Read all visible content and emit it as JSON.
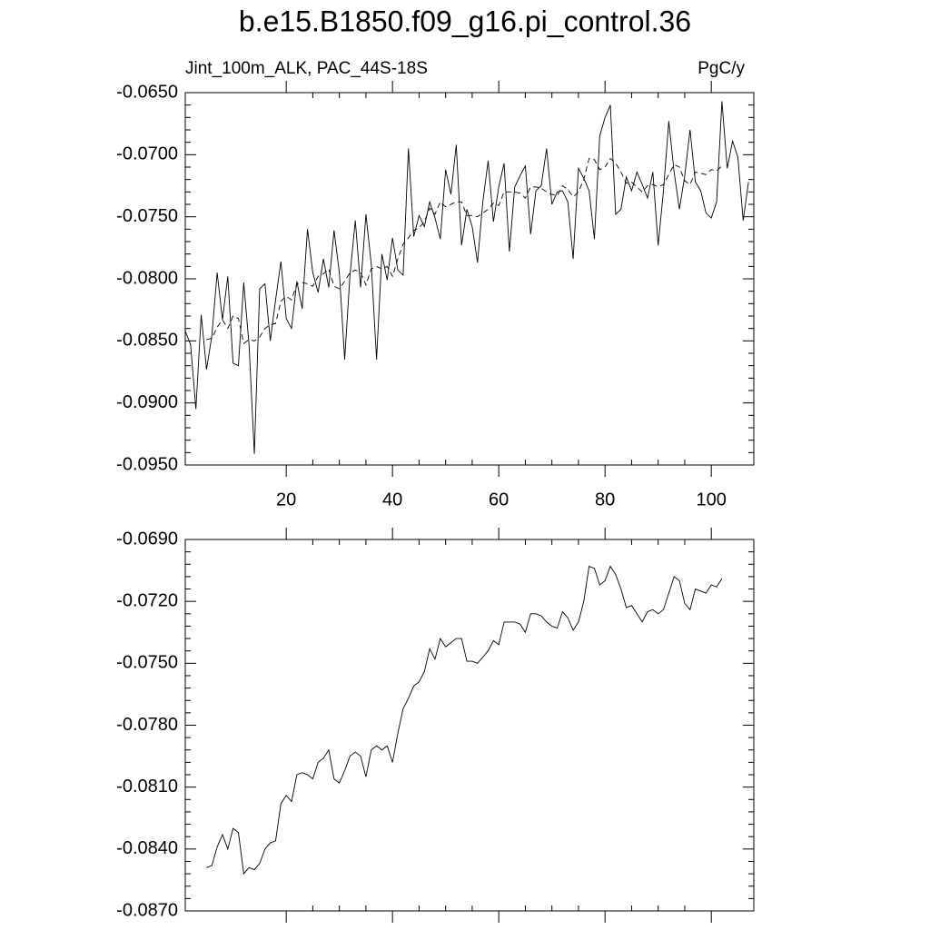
{
  "chart_data": [
    {
      "type": "line",
      "title": "b.e15.B1850.f09_g16.pi_control.36",
      "left_string": "Jint_100m_ALK, PAC_44S-18S",
      "right_string": "PgC/y",
      "x": [
        1,
        2,
        3,
        4,
        5,
        6,
        7,
        8,
        9,
        10,
        11,
        12,
        13,
        14,
        15,
        16,
        17,
        18,
        19,
        20,
        21,
        22,
        23,
        24,
        25,
        26,
        27,
        28,
        29,
        30,
        31,
        32,
        33,
        34,
        35,
        36,
        37,
        38,
        39,
        40,
        41,
        42,
        43,
        44,
        45,
        46,
        47,
        48,
        49,
        50,
        51,
        52,
        53,
        54,
        55,
        56,
        57,
        58,
        59,
        60,
        61,
        62,
        63,
        64,
        65,
        66,
        67,
        68,
        69,
        70,
        71,
        72,
        73,
        74,
        75,
        76,
        77,
        78,
        79,
        80,
        81,
        82,
        83,
        84,
        85,
        86,
        87,
        88,
        89,
        90,
        91,
        92,
        93,
        94,
        95,
        96,
        97,
        98,
        99,
        100,
        101,
        102,
        103,
        104,
        105,
        106,
        107
      ],
      "series": [
        {
          "color": "#000000",
          "dash": false,
          "values": [
            -0.0842,
            -0.0853,
            -0.0905,
            -0.0829,
            -0.0873,
            -0.0846,
            -0.0795,
            -0.0833,
            -0.0798,
            -0.0868,
            -0.087,
            -0.0803,
            -0.0853,
            -0.0941,
            -0.0808,
            -0.0804,
            -0.085,
            -0.0817,
            -0.0786,
            -0.0832,
            -0.084,
            -0.0802,
            -0.0824,
            -0.076,
            -0.0795,
            -0.0811,
            -0.0784,
            -0.0807,
            -0.0761,
            -0.0795,
            -0.0865,
            -0.0797,
            -0.0753,
            -0.0807,
            -0.0748,
            -0.0788,
            -0.0865,
            -0.078,
            -0.0801,
            -0.0767,
            -0.0793,
            -0.0797,
            -0.0695,
            -0.0766,
            -0.0749,
            -0.0758,
            -0.0738,
            -0.0751,
            -0.0768,
            -0.0712,
            -0.0732,
            -0.0692,
            -0.0773,
            -0.0744,
            -0.0758,
            -0.0787,
            -0.0738,
            -0.0705,
            -0.0754,
            -0.0726,
            -0.0707,
            -0.0778,
            -0.0726,
            -0.0717,
            -0.0709,
            -0.0764,
            -0.0729,
            -0.0725,
            -0.0695,
            -0.074,
            -0.073,
            -0.0729,
            -0.0738,
            -0.0784,
            -0.0711,
            -0.0719,
            -0.0729,
            -0.0768,
            -0.0685,
            -0.067,
            -0.066,
            -0.0748,
            -0.0744,
            -0.0718,
            -0.0729,
            -0.0714,
            -0.0724,
            -0.0735,
            -0.0714,
            -0.0773,
            -0.0729,
            -0.0673,
            -0.0714,
            -0.0744,
            -0.0717,
            -0.068,
            -0.0722,
            -0.0729,
            -0.0747,
            -0.0751,
            -0.0738,
            -0.0657,
            -0.0711,
            -0.0689,
            -0.0702,
            -0.0753,
            -0.0722
          ]
        },
        {
          "color": "#000000",
          "dash": true,
          "values": [
            null,
            null,
            null,
            null,
            -0.0849,
            -0.0848,
            -0.0839,
            -0.0833,
            -0.084,
            -0.083,
            -0.0832,
            -0.0852,
            -0.0849,
            -0.085,
            -0.0847,
            -0.084,
            -0.0837,
            -0.0836,
            -0.0818,
            -0.0814,
            -0.0817,
            -0.0804,
            -0.0803,
            -0.0804,
            -0.0806,
            -0.0798,
            -0.0796,
            -0.0792,
            -0.0806,
            -0.0808,
            -0.0802,
            -0.0795,
            -0.0793,
            -0.0795,
            -0.0805,
            -0.0792,
            -0.079,
            -0.0792,
            -0.079,
            -0.0798,
            -0.0784,
            -0.0772,
            -0.0767,
            -0.0761,
            -0.0759,
            -0.0754,
            -0.0743,
            -0.0748,
            -0.0738,
            -0.0742,
            -0.074,
            -0.0738,
            -0.0738,
            -0.0749,
            -0.0749,
            -0.075,
            -0.0747,
            -0.0744,
            -0.0739,
            -0.0741,
            -0.073,
            -0.073,
            -0.073,
            -0.0731,
            -0.0735,
            -0.0726,
            -0.0726,
            -0.0727,
            -0.073,
            -0.0732,
            -0.0733,
            -0.0725,
            -0.0728,
            -0.0734,
            -0.073,
            -0.072,
            -0.0703,
            -0.0704,
            -0.0712,
            -0.071,
            -0.0703,
            -0.0707,
            -0.0714,
            -0.0723,
            -0.0722,
            -0.0726,
            -0.073,
            -0.0725,
            -0.0724,
            -0.0726,
            -0.0724,
            -0.0716,
            -0.0708,
            -0.071,
            -0.0721,
            -0.0724,
            -0.0714,
            -0.0715,
            -0.0716,
            -0.0712,
            -0.0713,
            -0.0709,
            null,
            null,
            null,
            null,
            null
          ]
        }
      ],
      "xlim": [
        1,
        108
      ],
      "xticks": [
        20,
        40,
        60,
        80,
        100
      ],
      "xtick_labels": true,
      "ylim": [
        -0.095,
        -0.065
      ],
      "yticks": [
        {
          "value": -0.095,
          "label": "-0.0950"
        },
        {
          "value": -0.09,
          "label": "-0.0900"
        },
        {
          "value": -0.085,
          "label": "-0.0850"
        },
        {
          "value": -0.08,
          "label": "-0.0800"
        },
        {
          "value": -0.075,
          "label": "-0.0750"
        },
        {
          "value": -0.07,
          "label": "-0.0700"
        },
        {
          "value": -0.065,
          "label": "-0.0650"
        }
      ]
    },
    {
      "type": "line",
      "x": [
        5,
        6,
        7,
        8,
        9,
        10,
        11,
        12,
        13,
        14,
        15,
        16,
        17,
        18,
        19,
        20,
        21,
        22,
        23,
        24,
        25,
        26,
        27,
        28,
        29,
        30,
        31,
        32,
        33,
        34,
        35,
        36,
        37,
        38,
        39,
        40,
        41,
        42,
        43,
        44,
        45,
        46,
        47,
        48,
        49,
        50,
        51,
        52,
        53,
        54,
        55,
        56,
        57,
        58,
        59,
        60,
        61,
        62,
        63,
        64,
        65,
        66,
        67,
        68,
        69,
        70,
        71,
        72,
        73,
        74,
        75,
        76,
        77,
        78,
        79,
        80,
        81,
        82,
        83,
        84,
        85,
        86,
        87,
        88,
        89,
        90,
        91,
        92,
        93,
        94,
        95,
        96,
        97,
        98,
        99,
        100,
        101,
        102
      ],
      "series": [
        {
          "color": "#000000",
          "dash": false,
          "values": [
            -0.0849,
            -0.0848,
            -0.0839,
            -0.0833,
            -0.084,
            -0.083,
            -0.0832,
            -0.0852,
            -0.0849,
            -0.085,
            -0.0847,
            -0.084,
            -0.0837,
            -0.0836,
            -0.0818,
            -0.0814,
            -0.0817,
            -0.0804,
            -0.0803,
            -0.0804,
            -0.0806,
            -0.0798,
            -0.0796,
            -0.0792,
            -0.0806,
            -0.0808,
            -0.0802,
            -0.0795,
            -0.0793,
            -0.0795,
            -0.0805,
            -0.0792,
            -0.079,
            -0.0792,
            -0.079,
            -0.0798,
            -0.0784,
            -0.0772,
            -0.0767,
            -0.0761,
            -0.0759,
            -0.0754,
            -0.0743,
            -0.0748,
            -0.0738,
            -0.0742,
            -0.074,
            -0.0738,
            -0.0738,
            -0.0749,
            -0.0749,
            -0.075,
            -0.0747,
            -0.0744,
            -0.0739,
            -0.0741,
            -0.073,
            -0.073,
            -0.073,
            -0.0731,
            -0.0735,
            -0.0726,
            -0.0726,
            -0.0727,
            -0.073,
            -0.0732,
            -0.0733,
            -0.0725,
            -0.0728,
            -0.0734,
            -0.073,
            -0.072,
            -0.0703,
            -0.0704,
            -0.0712,
            -0.071,
            -0.0703,
            -0.0707,
            -0.0714,
            -0.0723,
            -0.0722,
            -0.0726,
            -0.073,
            -0.0725,
            -0.0724,
            -0.0726,
            -0.0724,
            -0.0716,
            -0.0708,
            -0.071,
            -0.0721,
            -0.0724,
            -0.0714,
            -0.0715,
            -0.0716,
            -0.0712,
            -0.0713,
            -0.0709
          ]
        }
      ],
      "xlim": [
        1,
        108
      ],
      "xticks": [
        20,
        40,
        60,
        80,
        100
      ],
      "xtick_labels": false,
      "ylim": [
        -0.087,
        -0.069
      ],
      "yticks": [
        {
          "value": -0.087,
          "label": "-0.0870"
        },
        {
          "value": -0.084,
          "label": "-0.0840"
        },
        {
          "value": -0.081,
          "label": "-0.0810"
        },
        {
          "value": -0.078,
          "label": "-0.0780"
        },
        {
          "value": -0.075,
          "label": "-0.0750"
        },
        {
          "value": -0.072,
          "label": "-0.0720"
        },
        {
          "value": -0.069,
          "label": "-0.0690"
        }
      ]
    }
  ]
}
